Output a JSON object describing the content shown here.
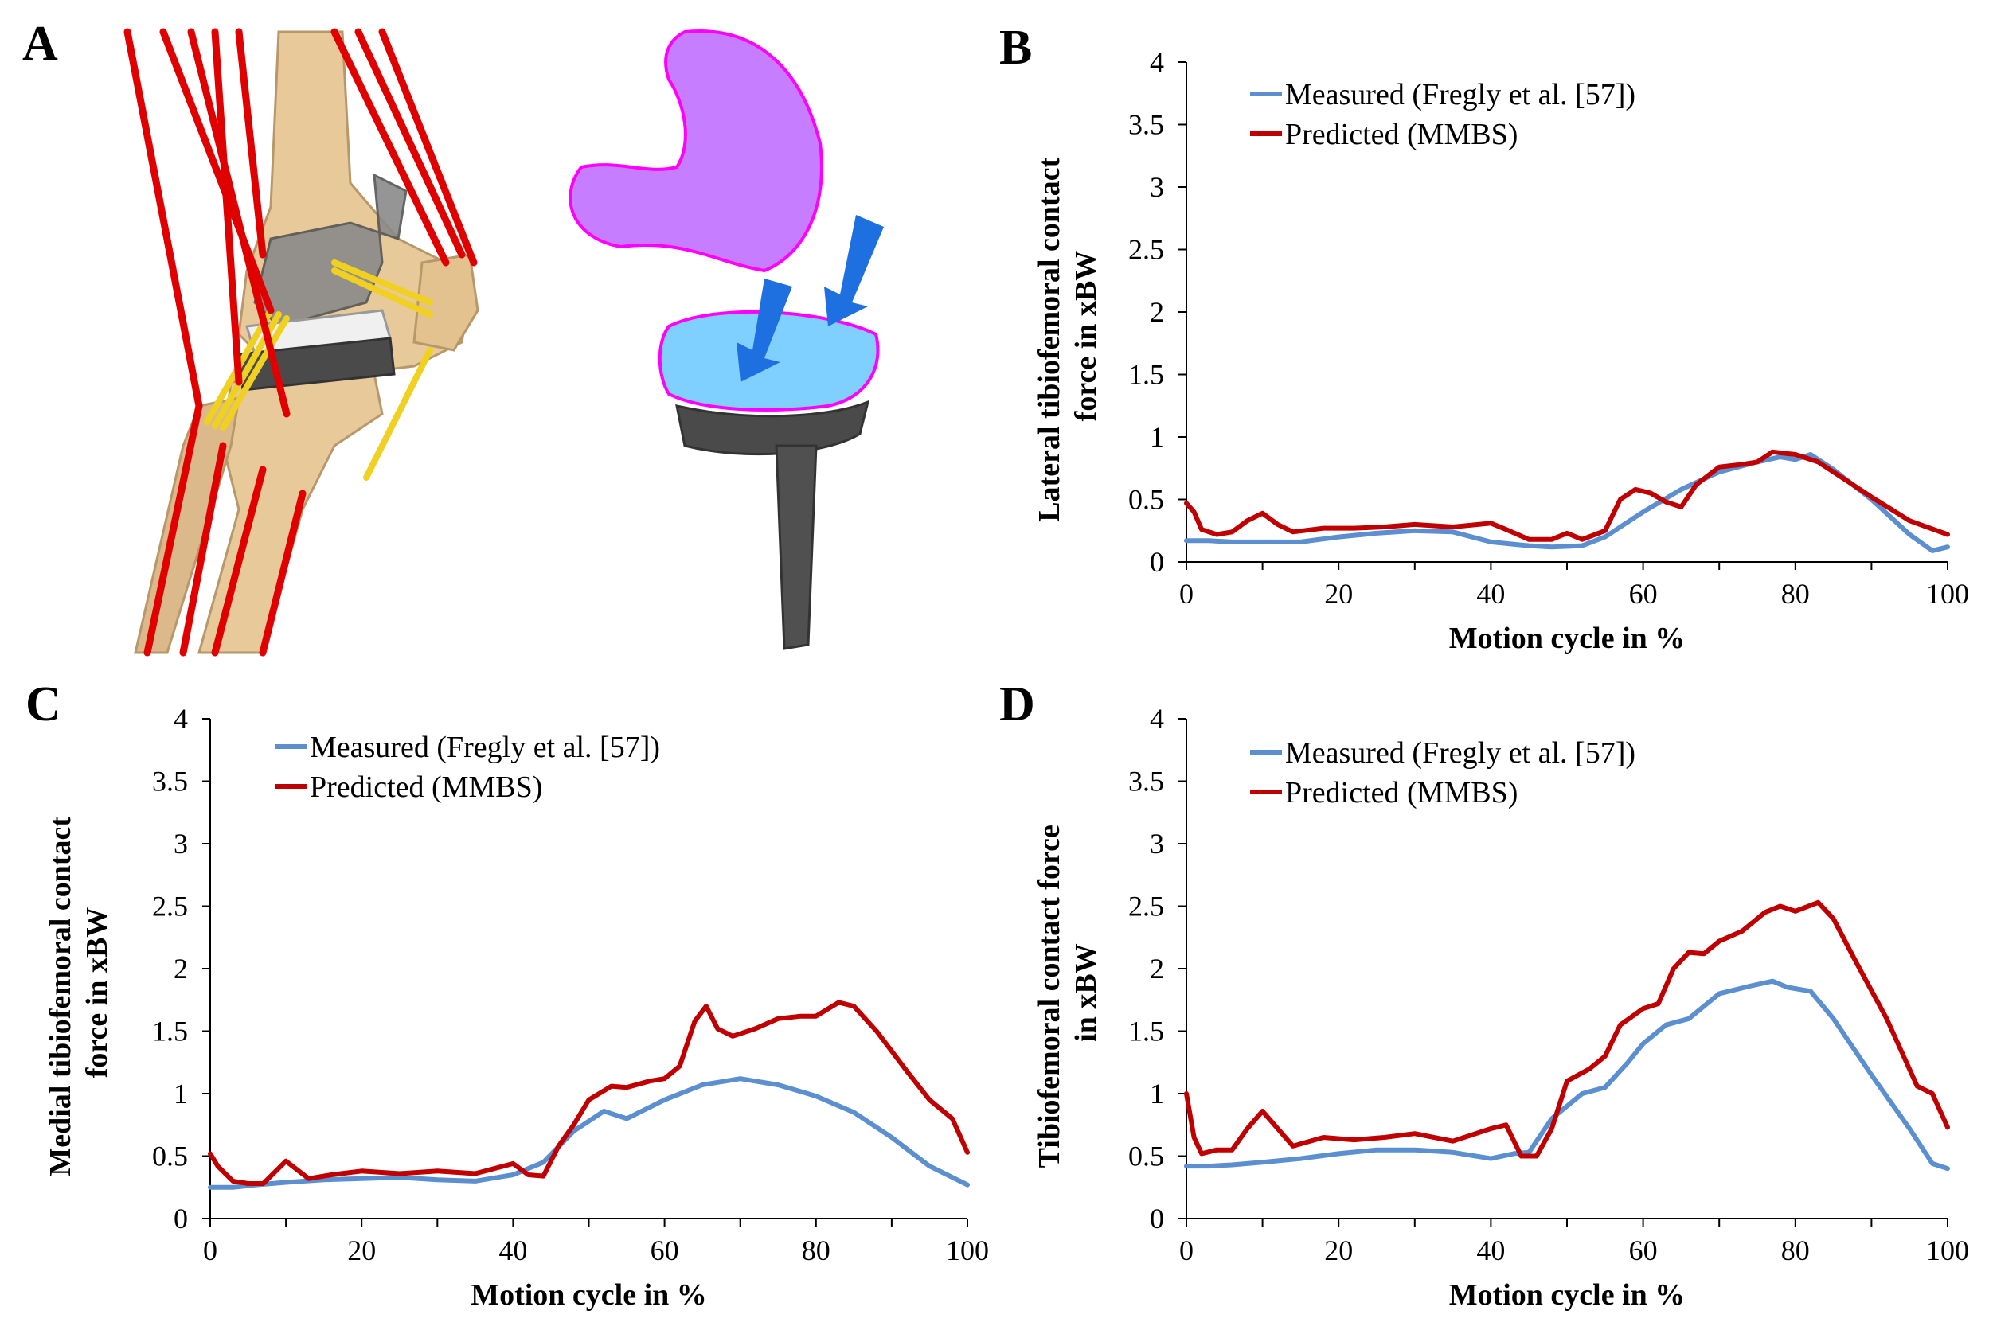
{
  "panel_a": {
    "label": "A",
    "implant_labels": {}
  },
  "colors": {
    "measured": "#5b8fd0",
    "predicted": "#c00000",
    "muscle": "#e00000",
    "ligament": "#f0d020",
    "bone": "#e8c99a",
    "implant": "#555555"
  },
  "chart_data": [
    {
      "panel": "B",
      "type": "line",
      "title": "",
      "xlabel": "Motion cycle in %",
      "ylabel_line1": "Lateral tibiofemoral contact",
      "ylabel_line2": "force in xBW",
      "xlim": [
        0,
        100
      ],
      "ylim": [
        0,
        4
      ],
      "xticks": [
        "0",
        "20",
        "40",
        "60",
        "80",
        "100"
      ],
      "yticks": [
        "0",
        "0.5",
        "1",
        "1.5",
        "2",
        "2.5",
        "3",
        "3.5",
        "4"
      ],
      "series": [
        {
          "name": "Measured (Fregly et al. [57])",
          "x": [
            0,
            3,
            6,
            10,
            15,
            20,
            25,
            30,
            35,
            40,
            45,
            48,
            52,
            55,
            60,
            65,
            70,
            75,
            78,
            80,
            82,
            85,
            90,
            95,
            98,
            100
          ],
          "y": [
            0.17,
            0.17,
            0.16,
            0.16,
            0.16,
            0.2,
            0.23,
            0.25,
            0.24,
            0.16,
            0.13,
            0.12,
            0.13,
            0.2,
            0.4,
            0.58,
            0.72,
            0.8,
            0.84,
            0.82,
            0.86,
            0.74,
            0.5,
            0.22,
            0.09,
            0.12
          ]
        },
        {
          "name": "Predicted (MMBS)",
          "x": [
            0,
            1,
            2,
            4,
            6,
            8,
            10,
            12,
            14,
            18,
            22,
            26,
            30,
            35,
            40,
            42,
            45,
            48,
            50,
            52,
            55,
            57,
            59,
            61,
            63,
            65,
            67,
            70,
            73,
            75,
            77,
            80,
            83,
            86,
            90,
            95,
            100
          ],
          "y": [
            0.47,
            0.4,
            0.26,
            0.22,
            0.24,
            0.33,
            0.39,
            0.3,
            0.24,
            0.27,
            0.27,
            0.28,
            0.3,
            0.28,
            0.31,
            0.26,
            0.18,
            0.18,
            0.23,
            0.18,
            0.25,
            0.5,
            0.58,
            0.55,
            0.48,
            0.44,
            0.62,
            0.76,
            0.78,
            0.8,
            0.88,
            0.86,
            0.8,
            0.68,
            0.52,
            0.33,
            0.22
          ]
        }
      ],
      "legend": [
        "Measured (Fregly et al. [57])",
        "Predicted (MMBS)"
      ]
    },
    {
      "panel": "C",
      "type": "line",
      "title": "",
      "xlabel": "Motion cycle in %",
      "ylabel_line1": "Medial tibiofemoral contact",
      "ylabel_line2": "force in xBW",
      "xlim": [
        0,
        100
      ],
      "ylim": [
        0,
        4
      ],
      "xticks": [
        "0",
        "20",
        "40",
        "60",
        "80",
        "100"
      ],
      "yticks": [
        "0",
        "0.5",
        "1",
        "1.5",
        "2",
        "2.5",
        "3",
        "3.5",
        "4"
      ],
      "series": [
        {
          "name": "Measured (Fregly et al. [57])",
          "x": [
            0,
            3,
            6,
            10,
            15,
            20,
            25,
            30,
            35,
            40,
            44,
            48,
            52,
            55,
            60,
            65,
            70,
            75,
            80,
            85,
            90,
            95,
            100
          ],
          "y": [
            0.25,
            0.25,
            0.27,
            0.29,
            0.31,
            0.32,
            0.33,
            0.31,
            0.3,
            0.35,
            0.45,
            0.7,
            0.86,
            0.8,
            0.95,
            1.07,
            1.12,
            1.07,
            0.98,
            0.85,
            0.65,
            0.42,
            0.27
          ]
        },
        {
          "name": "Predicted (MMBS)",
          "x": [
            0,
            1,
            3,
            5,
            7,
            10,
            13,
            16,
            20,
            25,
            30,
            35,
            40,
            42,
            44,
            46,
            48,
            50,
            53,
            55,
            58,
            60,
            62,
            64,
            65.5,
            67,
            69,
            72,
            75,
            78,
            80,
            83,
            85,
            88,
            92,
            95,
            98,
            100
          ],
          "y": [
            0.52,
            0.42,
            0.3,
            0.28,
            0.28,
            0.46,
            0.32,
            0.35,
            0.38,
            0.36,
            0.38,
            0.36,
            0.44,
            0.35,
            0.34,
            0.58,
            0.75,
            0.95,
            1.06,
            1.05,
            1.1,
            1.12,
            1.22,
            1.58,
            1.7,
            1.52,
            1.46,
            1.52,
            1.6,
            1.62,
            1.62,
            1.73,
            1.7,
            1.5,
            1.18,
            0.95,
            0.8,
            0.53
          ]
        }
      ],
      "legend": [
        "Measured (Fregly et al. [57])",
        "Predicted (MMBS)"
      ]
    },
    {
      "panel": "D",
      "type": "line",
      "title": "",
      "xlabel": "Motion cycle in %",
      "ylabel_line1": "Tibiofemoral contact force",
      "ylabel_line2": "in xBW",
      "xlim": [
        0,
        100
      ],
      "ylim": [
        0,
        4
      ],
      "xticks": [
        "0",
        "20",
        "40",
        "60",
        "80",
        "100"
      ],
      "yticks": [
        "0",
        "0.5",
        "1",
        "1.5",
        "2",
        "2.5",
        "3",
        "3.5",
        "4"
      ],
      "series": [
        {
          "name": "Measured (Fregly et al. [57])",
          "x": [
            0,
            3,
            6,
            10,
            15,
            20,
            25,
            30,
            35,
            40,
            43,
            45,
            48,
            52,
            55,
            58,
            60,
            63,
            66,
            70,
            74,
            77,
            79,
            82,
            85,
            90,
            95,
            98,
            100
          ],
          "y": [
            0.42,
            0.42,
            0.43,
            0.45,
            0.48,
            0.52,
            0.55,
            0.55,
            0.53,
            0.48,
            0.52,
            0.53,
            0.8,
            1.0,
            1.05,
            1.25,
            1.4,
            1.55,
            1.6,
            1.8,
            1.86,
            1.9,
            1.85,
            1.82,
            1.6,
            1.15,
            0.72,
            0.44,
            0.4
          ]
        },
        {
          "name": "Predicted (MMBS)",
          "x": [
            0,
            1,
            2,
            4,
            6,
            8,
            10,
            12,
            14,
            18,
            22,
            26,
            30,
            35,
            40,
            42,
            44,
            46,
            48,
            50,
            53,
            55,
            57,
            60,
            62,
            64,
            66,
            68,
            70,
            73,
            76,
            78,
            80,
            83,
            85,
            88,
            92,
            96,
            98,
            100
          ],
          "y": [
            1.0,
            0.65,
            0.52,
            0.55,
            0.55,
            0.72,
            0.86,
            0.72,
            0.58,
            0.65,
            0.63,
            0.65,
            0.68,
            0.62,
            0.72,
            0.75,
            0.5,
            0.5,
            0.72,
            1.1,
            1.2,
            1.3,
            1.55,
            1.68,
            1.72,
            2.0,
            2.13,
            2.12,
            2.22,
            2.3,
            2.45,
            2.5,
            2.46,
            2.53,
            2.4,
            2.05,
            1.6,
            1.06,
            1.0,
            0.73
          ]
        }
      ],
      "legend": [
        "Measured (Fregly et al. [57])",
        "Predicted (MMBS)"
      ]
    }
  ]
}
